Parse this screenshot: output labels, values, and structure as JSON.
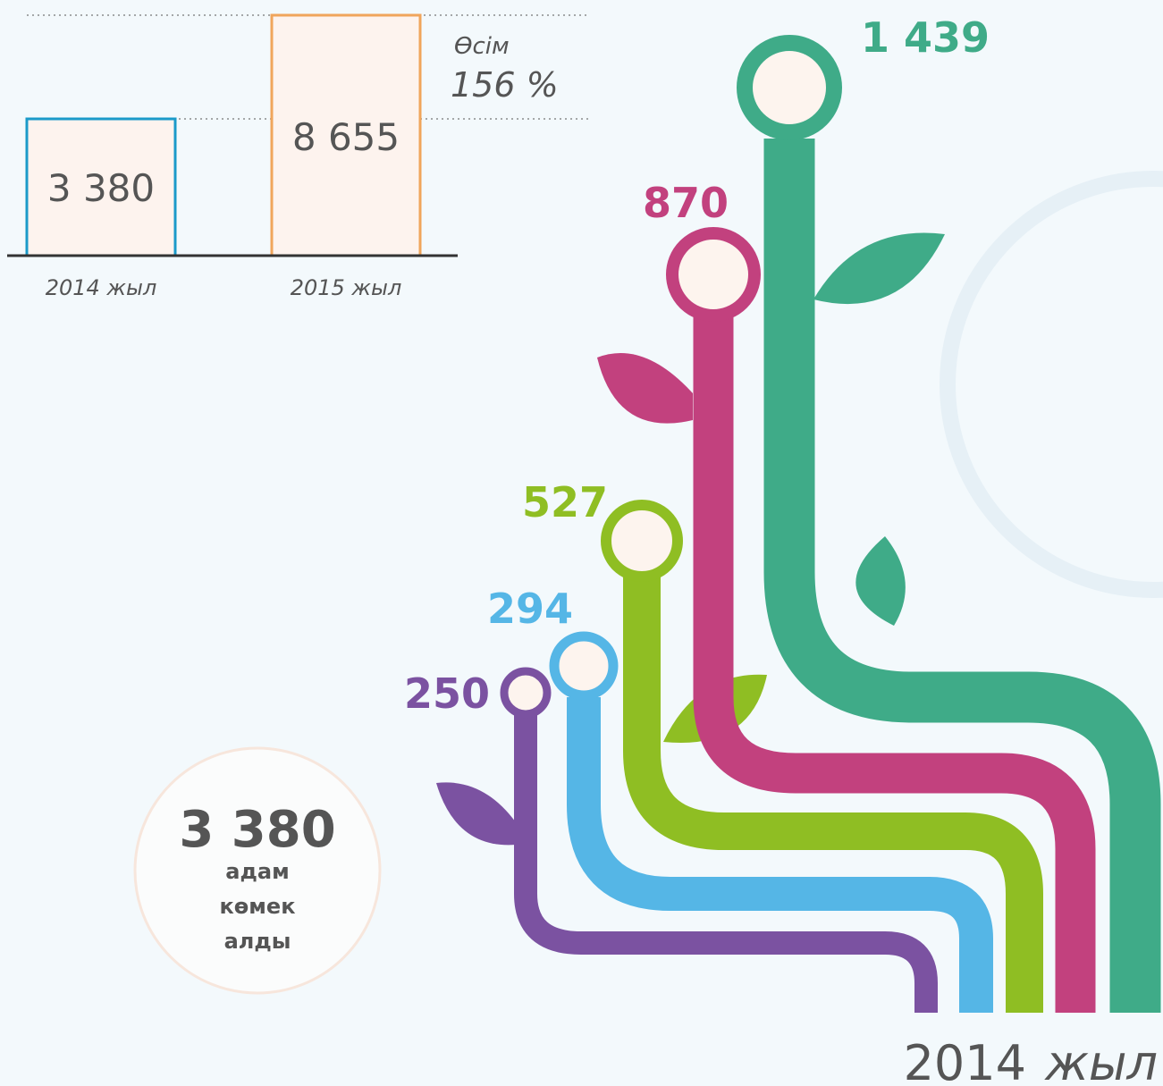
{
  "bar_compare": {
    "bars": [
      {
        "value": "3 380",
        "label": "2014 жыл"
      },
      {
        "value": "8 655",
        "label": "2015 жыл"
      }
    ],
    "growth": {
      "label": "Өсім",
      "value": "156 %"
    }
  },
  "stems": [
    {
      "value": "250"
    },
    {
      "value": "294"
    },
    {
      "value": "527"
    },
    {
      "value": "870"
    },
    {
      "value": "1 439"
    }
  ],
  "summary": {
    "value": "3 380",
    "lines": [
      "адам",
      "көмек",
      "алды"
    ]
  },
  "footer": {
    "year": "2014",
    "unit": "жыл"
  }
}
